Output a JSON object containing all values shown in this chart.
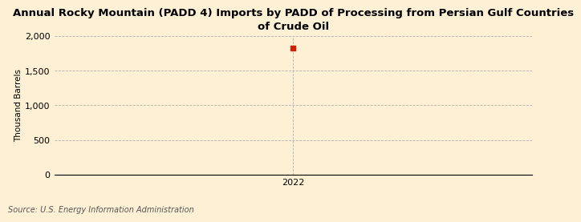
{
  "title_line1": "Annual Rocky Mountain (PADD 4) Imports by PADD of Processing from Persian Gulf Countries",
  "title_line2": "of Crude Oil",
  "ylabel": "Thousand Barrels",
  "source": "Source: U.S. Energy Information Administration",
  "x_data": [
    2022
  ],
  "y_data": [
    1827
  ],
  "marker_color": "#cc2200",
  "background_color": "#fdf0d5",
  "ylim": [
    0,
    2000
  ],
  "yticks": [
    0,
    500,
    1000,
    1500,
    2000
  ],
  "xlim_left": 2021.6,
  "xlim_right": 2022.4,
  "grid_color": "#b0b0b0",
  "grid_linestyle": "--",
  "title_fontsize": 9.5,
  "label_fontsize": 7.5,
  "tick_fontsize": 8,
  "source_fontsize": 7
}
